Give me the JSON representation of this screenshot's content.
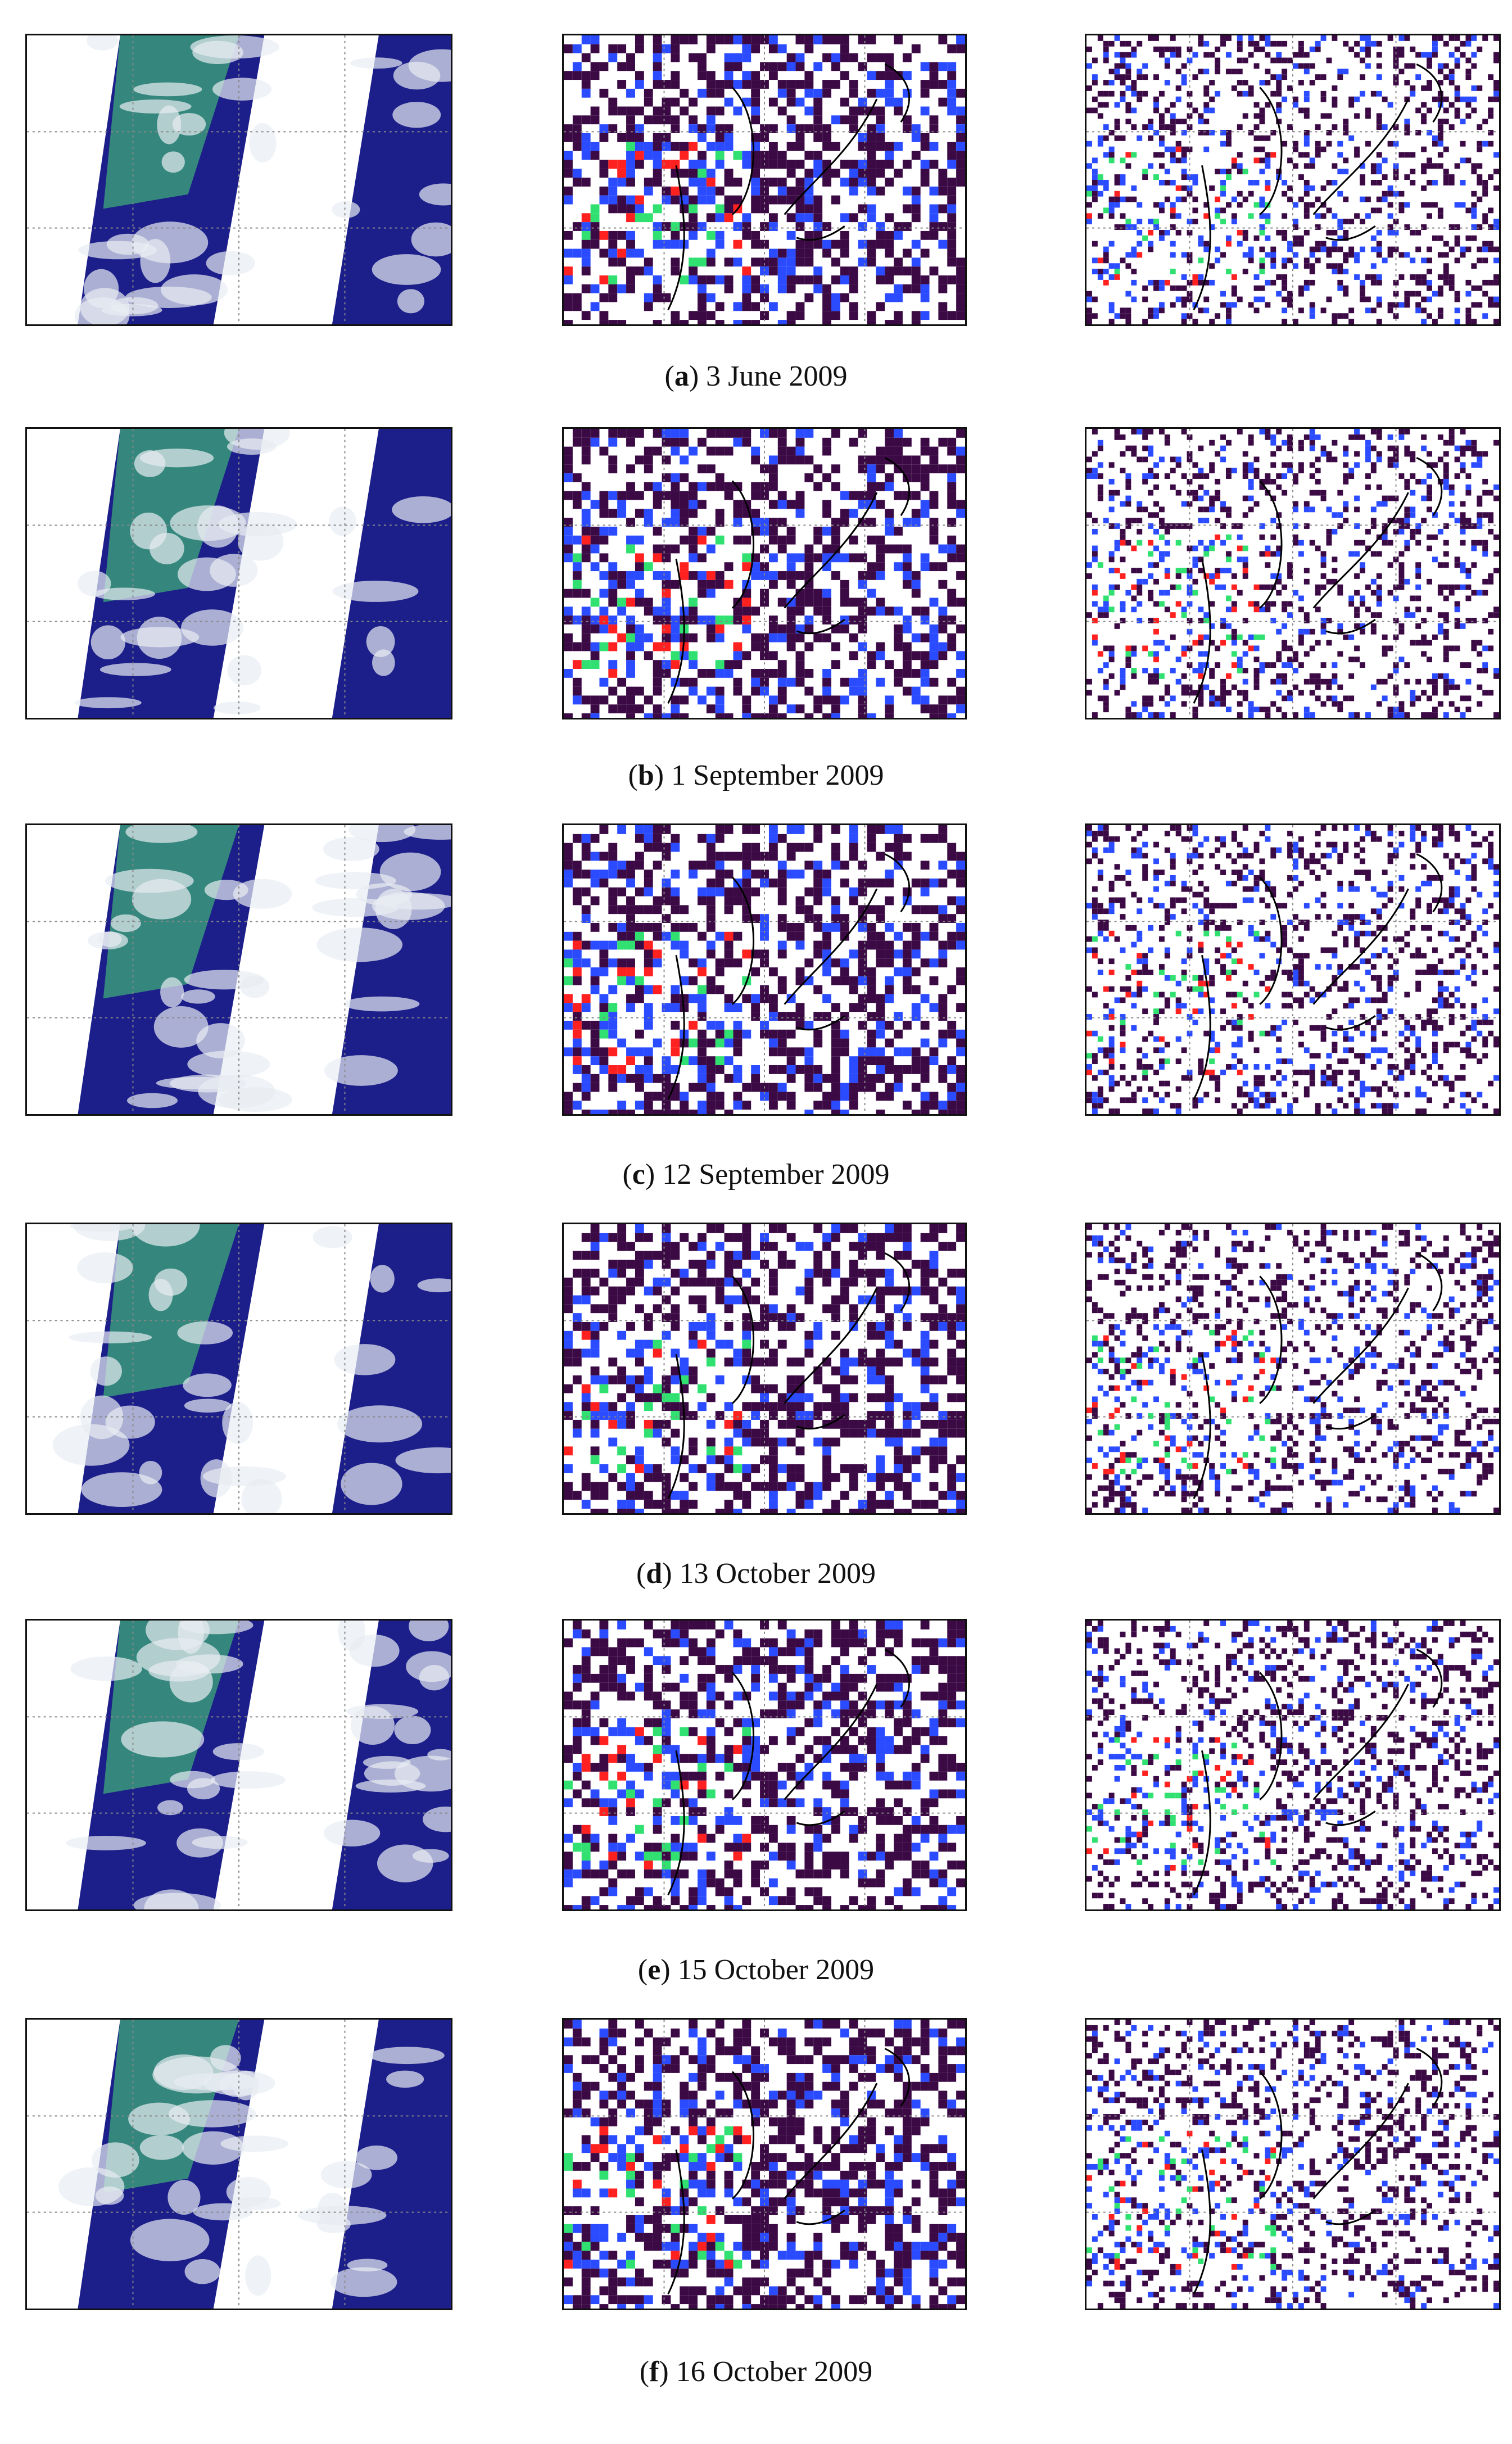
{
  "figure": {
    "rows": [
      {
        "letter": "a",
        "date": "3 June 2009"
      },
      {
        "letter": "b",
        "date": "1 September 2009"
      },
      {
        "letter": "c",
        "date": "12 September 2009"
      },
      {
        "letter": "d",
        "date": "13 October 2009"
      },
      {
        "letter": "e",
        "date": "15 October 2009"
      },
      {
        "letter": "f",
        "date": "16 October 2009"
      }
    ],
    "columns": [
      {
        "kind": "true-color-composite",
        "icon": "satellite-swath-image"
      },
      {
        "kind": "aod-map-coarse",
        "icon": "aerosol-map-coarse"
      },
      {
        "kind": "aod-map-fine",
        "icon": "aerosol-map-fine"
      }
    ],
    "colors": {
      "land_green": "#3a9a7a",
      "ocean_blue": "#1c1e8a",
      "cloud_white": "#e8ecf2",
      "aod_dark": "#3b0a45",
      "aod_blue": "#2a4bff",
      "aod_green": "#30e070",
      "aod_red": "#ff2020"
    }
  }
}
